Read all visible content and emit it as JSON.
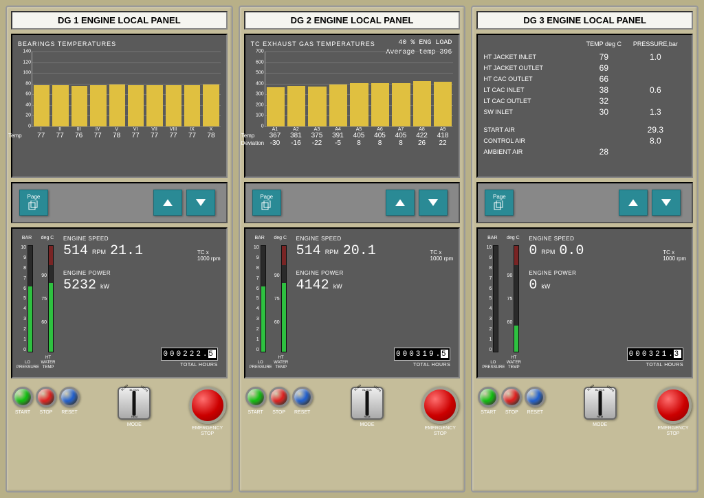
{
  "colors": {
    "bar": "#e0c040",
    "screen_bg": "#5a5a5a",
    "nav_btn": "#2a8a95",
    "green_fill": "#2ec040",
    "lamp_green": "#10c010",
    "lamp_red": "#e02020",
    "lamp_blue": "#2060d0",
    "estop": "#cc0000"
  },
  "panels": [
    {
      "title": "DG 1 ENGINE LOCAL PANEL",
      "screen": {
        "kind": "bearings",
        "title": "BEARINGS TEMPERATURES",
        "y_max": 140,
        "y_step": 20,
        "categories": [
          "I",
          "II",
          "III",
          "IV",
          "V",
          "VI",
          "VII",
          "VIII",
          "IX",
          "X"
        ],
        "temps": [
          77,
          77,
          76,
          77,
          78,
          77,
          77,
          77,
          77,
          78
        ]
      },
      "gauges": {
        "lo_pressure": {
          "label": "BAR",
          "foot": "LO\nPRESSURE",
          "max": 10,
          "value": 6.2,
          "color": "#2ec040",
          "ticks": [
            10,
            9,
            8,
            7,
            6,
            5,
            4,
            3,
            2,
            1,
            0
          ]
        },
        "ht_water": {
          "label": "deg C",
          "foot": "HT\nWATER\nTEMP",
          "max": 120,
          "value": 78,
          "color": "#2ec040",
          "ticks": [
            "",
            "",
            "",
            "90",
            "",
            "75",
            "",
            "60",
            "",
            "",
            ""
          ],
          "red_top": true
        },
        "engine_speed": 514,
        "tc_rpm": "21.1",
        "engine_power": 5232,
        "hours": "000222",
        "hours_tenths": "5"
      },
      "controls": {
        "start": "START",
        "stop": "STOP",
        "reset": "RESET",
        "mode": "MODE",
        "estop": "EMERGENCY\nSTOP"
      }
    },
    {
      "title": "DG 2 ENGINE  LOCAL PANEL",
      "screen": {
        "kind": "exhaust",
        "title": "TC EXHAUST GAS TEMPERATURES",
        "eng_load_pct": 40,
        "eng_load_label": "%   ENG LOAD",
        "avg_temp_label": "Average temp",
        "avg_temp": 396,
        "y_max": 700,
        "y_step": 100,
        "categories": [
          "A1",
          "A2",
          "A3",
          "A4",
          "A5",
          "A6",
          "A7",
          "A8",
          "A9"
        ],
        "temps": [
          367,
          381,
          375,
          391,
          405,
          405,
          405,
          422,
          418
        ],
        "deviation": [
          -30,
          -16,
          -22,
          -5,
          8,
          8,
          8,
          26,
          22
        ]
      },
      "gauges": {
        "lo_pressure": {
          "label": "BAR",
          "foot": "LO\nPRESSURE",
          "max": 10,
          "value": 6.2,
          "color": "#2ec040",
          "ticks": [
            10,
            9,
            8,
            7,
            6,
            5,
            4,
            3,
            2,
            1,
            0
          ]
        },
        "ht_water": {
          "label": "deg C",
          "foot": "HT\nWATER\nTEMP",
          "max": 120,
          "value": 78,
          "color": "#2ec040",
          "ticks": [
            "",
            "",
            "",
            "90",
            "",
            "75",
            "",
            "60",
            "",
            "",
            ""
          ],
          "red_top": true
        },
        "engine_speed": 514,
        "tc_rpm": "20.1",
        "engine_power": 4142,
        "hours": "000319",
        "hours_tenths": "5"
      },
      "controls": {
        "start": "START",
        "stop": "STOP",
        "reset": "RESET",
        "mode": "MODE",
        "estop": "EMERGENCY\nSTOP"
      }
    },
    {
      "title": "DG 3 ENGINE LOCAL PANEL",
      "screen": {
        "kind": "table",
        "header": {
          "temp": "TEMP deg C",
          "press": "PRESSURE,bar"
        },
        "rows": [
          {
            "label": "HT JACKET INLET",
            "temp": 79,
            "press": "1.0"
          },
          {
            "label": "HT  JACKET OUTLET",
            "temp": 69,
            "press": ""
          },
          {
            "label": "HT  CAC OUTLET",
            "temp": 66,
            "press": ""
          },
          {
            "label": "LT  CAC INLET",
            "temp": 38,
            "press": "0.6"
          },
          {
            "label": "LT  CAC OUTLET",
            "temp": 32,
            "press": ""
          },
          {
            "label": "SW INLET",
            "temp": 30,
            "press": "1.3"
          }
        ],
        "rows2": [
          {
            "label": "START AIR",
            "temp": "",
            "press": "29.3"
          },
          {
            "label": "CONTROL AIR",
            "temp": "",
            "press": "8.0"
          },
          {
            "label": "AMBIENT AIR",
            "temp": 28,
            "press": ""
          }
        ]
      },
      "gauges": {
        "lo_pressure": {
          "label": "BAR",
          "foot": "LO\nPRESSURE",
          "max": 10,
          "value": 0,
          "color": "#2ec040",
          "ticks": [
            10,
            9,
            8,
            7,
            6,
            5,
            4,
            3,
            2,
            1,
            0
          ]
        },
        "ht_water": {
          "label": "deg C",
          "foot": "HT\nWATER\nTEMP",
          "max": 120,
          "value": 30,
          "color": "#2ec040",
          "ticks": [
            "",
            "",
            "",
            "90",
            "",
            "75",
            "",
            "60",
            "",
            "",
            ""
          ],
          "red_top": true
        },
        "engine_speed": 0,
        "tc_rpm": "0.0",
        "engine_power": 0,
        "hours": "000321",
        "hours_tenths": "3"
      },
      "controls": {
        "start": "START",
        "stop": "STOP",
        "reset": "RESET",
        "mode": "MODE",
        "estop": "EMERGENCY\nSTOP"
      }
    }
  ],
  "labels": {
    "page_btn": "Page",
    "engine_speed": "ENGINE SPEED",
    "rpm": "RPM",
    "tc": "TC x\n1000 rpm",
    "engine_power": "ENGINE POWER",
    "kw": "kW",
    "total_hours": "TOTAL HOURS",
    "temp_row": "Temp",
    "dev_row": "Deviation",
    "mode_positions": {
      "blow": "BLOW",
      "block": "BLOCK",
      "local": "LOCAL",
      "rem": "REM"
    }
  }
}
